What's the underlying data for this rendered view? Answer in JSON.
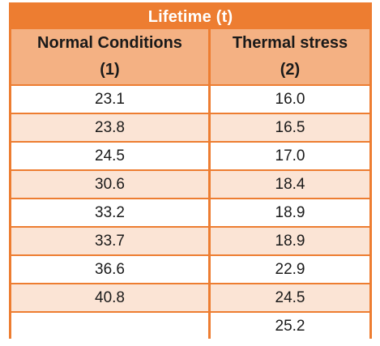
{
  "table": {
    "title": "Lifetime (t)",
    "columns": [
      {
        "label": "Normal Conditions",
        "index": "(1)"
      },
      {
        "label": "Thermal stress",
        "index": "(2)"
      }
    ],
    "rows": [
      [
        "23.1",
        "16.0"
      ],
      [
        "23.8",
        "16.5"
      ],
      [
        "24.5",
        "17.0"
      ],
      [
        "30.6",
        "18.4"
      ],
      [
        "33.2",
        "18.9"
      ],
      [
        "33.7",
        "18.9"
      ],
      [
        "36.6",
        "22.9"
      ],
      [
        "40.8",
        "24.5"
      ],
      [
        "",
        "25.2"
      ]
    ]
  },
  "colors": {
    "header": "#ed7d31",
    "subheader": "#f4b183",
    "band": "#fbe4d5"
  }
}
